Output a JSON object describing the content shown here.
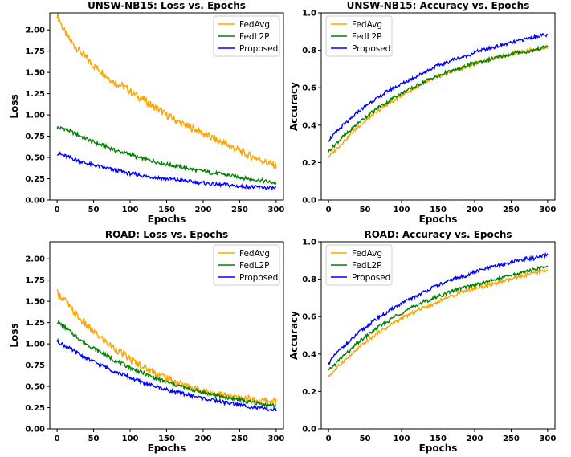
{
  "colors": {
    "FedAvg": "#FFA500",
    "FedL2P": "#008000",
    "Proposed": "#0000FF"
  },
  "chart_data": [
    {
      "type": "line",
      "title": "UNSW-NB15: Loss vs. Epochs",
      "xlabel": "Epochs",
      "ylabel": "Loss",
      "xlim": [
        -10,
        310
      ],
      "ylim": [
        0,
        2.2
      ],
      "xticks": [
        "0",
        "50",
        "100",
        "150",
        "200",
        "250",
        "300"
      ],
      "yticks": [
        "0.00",
        "0.25",
        "0.50",
        "0.75",
        "1.00",
        "1.25",
        "1.50",
        "1.75",
        "2.00"
      ],
      "legend": "top-right",
      "series": [
        {
          "name": "FedAvg",
          "x": [
            0,
            10,
            20,
            30,
            40,
            50,
            60,
            70,
            80,
            90,
            100,
            110,
            120,
            130,
            140,
            150,
            160,
            170,
            180,
            190,
            200,
            210,
            220,
            230,
            240,
            250,
            260,
            270,
            280,
            290,
            300
          ],
          "values": [
            2.18,
            1.98,
            1.85,
            1.76,
            1.67,
            1.58,
            1.52,
            1.44,
            1.38,
            1.34,
            1.28,
            1.22,
            1.17,
            1.11,
            1.06,
            1.0,
            0.95,
            0.9,
            0.86,
            0.83,
            0.78,
            0.74,
            0.7,
            0.66,
            0.62,
            0.58,
            0.53,
            0.5,
            0.47,
            0.43,
            0.4
          ]
        },
        {
          "name": "FedL2P",
          "x": [
            0,
            10,
            20,
            30,
            40,
            50,
            60,
            70,
            80,
            90,
            100,
            110,
            120,
            130,
            140,
            150,
            160,
            170,
            180,
            190,
            200,
            210,
            220,
            230,
            240,
            250,
            260,
            270,
            280,
            290,
            300
          ],
          "values": [
            0.85,
            0.84,
            0.8,
            0.76,
            0.72,
            0.68,
            0.65,
            0.62,
            0.58,
            0.56,
            0.54,
            0.5,
            0.48,
            0.46,
            0.44,
            0.42,
            0.4,
            0.39,
            0.37,
            0.35,
            0.34,
            0.32,
            0.31,
            0.3,
            0.28,
            0.27,
            0.25,
            0.24,
            0.23,
            0.21,
            0.2
          ]
        },
        {
          "name": "Proposed",
          "x": [
            0,
            10,
            20,
            30,
            40,
            50,
            60,
            70,
            80,
            90,
            100,
            110,
            120,
            130,
            140,
            150,
            160,
            170,
            180,
            190,
            200,
            210,
            220,
            230,
            240,
            250,
            260,
            270,
            280,
            290,
            300
          ],
          "values": [
            0.55,
            0.52,
            0.49,
            0.46,
            0.43,
            0.41,
            0.39,
            0.37,
            0.35,
            0.33,
            0.31,
            0.3,
            0.28,
            0.27,
            0.26,
            0.25,
            0.24,
            0.23,
            0.22,
            0.21,
            0.2,
            0.19,
            0.18,
            0.18,
            0.17,
            0.16,
            0.16,
            0.15,
            0.15,
            0.14,
            0.14
          ]
        }
      ]
    },
    {
      "type": "line",
      "title": "UNSW-NB15: Accuracy vs. Epochs",
      "xlabel": "Epochs",
      "ylabel": "Accuracy",
      "xlim": [
        -10,
        310
      ],
      "ylim": [
        0,
        1.0
      ],
      "xticks": [
        "0",
        "50",
        "100",
        "150",
        "200",
        "250",
        "300"
      ],
      "yticks": [
        "0.0",
        "0.2",
        "0.4",
        "0.6",
        "0.8",
        "1.0"
      ],
      "legend": "top-left",
      "series": [
        {
          "name": "FedAvg",
          "x": [
            0,
            10,
            20,
            30,
            40,
            50,
            60,
            70,
            80,
            90,
            100,
            110,
            120,
            130,
            140,
            150,
            160,
            170,
            180,
            190,
            200,
            210,
            220,
            230,
            240,
            250,
            260,
            270,
            280,
            290,
            300
          ],
          "values": [
            0.23,
            0.27,
            0.31,
            0.35,
            0.39,
            0.42,
            0.45,
            0.48,
            0.51,
            0.53,
            0.56,
            0.58,
            0.6,
            0.62,
            0.64,
            0.66,
            0.67,
            0.69,
            0.7,
            0.71,
            0.73,
            0.74,
            0.75,
            0.76,
            0.77,
            0.78,
            0.79,
            0.8,
            0.8,
            0.81,
            0.82
          ]
        },
        {
          "name": "FedL2P",
          "x": [
            0,
            10,
            20,
            30,
            40,
            50,
            60,
            70,
            80,
            90,
            100,
            110,
            120,
            130,
            140,
            150,
            160,
            170,
            180,
            190,
            200,
            210,
            220,
            230,
            240,
            250,
            260,
            270,
            280,
            290,
            300
          ],
          "values": [
            0.26,
            0.3,
            0.34,
            0.37,
            0.41,
            0.44,
            0.47,
            0.5,
            0.52,
            0.55,
            0.57,
            0.59,
            0.61,
            0.63,
            0.65,
            0.66,
            0.68,
            0.69,
            0.7,
            0.72,
            0.73,
            0.74,
            0.75,
            0.76,
            0.77,
            0.78,
            0.79,
            0.79,
            0.8,
            0.81,
            0.82
          ]
        },
        {
          "name": "Proposed",
          "x": [
            0,
            10,
            20,
            30,
            40,
            50,
            60,
            70,
            80,
            90,
            100,
            110,
            120,
            130,
            140,
            150,
            160,
            170,
            180,
            190,
            200,
            210,
            220,
            230,
            240,
            250,
            260,
            270,
            280,
            290,
            300
          ],
          "values": [
            0.32,
            0.36,
            0.4,
            0.43,
            0.47,
            0.5,
            0.53,
            0.55,
            0.58,
            0.6,
            0.62,
            0.64,
            0.66,
            0.68,
            0.7,
            0.72,
            0.73,
            0.75,
            0.76,
            0.77,
            0.79,
            0.8,
            0.81,
            0.82,
            0.83,
            0.84,
            0.85,
            0.86,
            0.87,
            0.88,
            0.88
          ]
        }
      ]
    },
    {
      "type": "line",
      "title": "ROAD: Loss vs. Epochs",
      "xlabel": "Epochs",
      "ylabel": "Loss",
      "xlim": [
        -10,
        310
      ],
      "ylim": [
        0,
        2.2
      ],
      "xticks": [
        "0",
        "50",
        "100",
        "150",
        "200",
        "250",
        "300"
      ],
      "yticks": [
        "0.00",
        "0.25",
        "0.50",
        "0.75",
        "1.00",
        "1.25",
        "1.50",
        "1.75",
        "2.00"
      ],
      "legend": "top-right",
      "series": [
        {
          "name": "FedAvg",
          "x": [
            0,
            10,
            20,
            30,
            40,
            50,
            60,
            70,
            80,
            90,
            100,
            110,
            120,
            130,
            140,
            150,
            160,
            170,
            180,
            190,
            200,
            210,
            220,
            230,
            240,
            250,
            260,
            270,
            280,
            290,
            300
          ],
          "values": [
            1.6,
            1.52,
            1.4,
            1.3,
            1.22,
            1.14,
            1.07,
            1.0,
            0.94,
            0.88,
            0.82,
            0.77,
            0.72,
            0.68,
            0.64,
            0.6,
            0.56,
            0.53,
            0.5,
            0.47,
            0.45,
            0.43,
            0.41,
            0.39,
            0.37,
            0.36,
            0.35,
            0.34,
            0.33,
            0.33,
            0.32
          ]
        },
        {
          "name": "FedL2P",
          "x": [
            0,
            10,
            20,
            30,
            40,
            50,
            60,
            70,
            80,
            90,
            100,
            110,
            120,
            130,
            140,
            150,
            160,
            170,
            180,
            190,
            200,
            210,
            220,
            230,
            240,
            250,
            260,
            270,
            280,
            290,
            300
          ],
          "values": [
            1.26,
            1.2,
            1.13,
            1.06,
            1.0,
            0.95,
            0.9,
            0.85,
            0.8,
            0.76,
            0.72,
            0.68,
            0.65,
            0.61,
            0.58,
            0.55,
            0.52,
            0.5,
            0.47,
            0.45,
            0.43,
            0.41,
            0.39,
            0.37,
            0.36,
            0.34,
            0.32,
            0.31,
            0.29,
            0.28,
            0.27
          ]
        },
        {
          "name": "Proposed",
          "x": [
            0,
            10,
            20,
            30,
            40,
            50,
            60,
            70,
            80,
            90,
            100,
            110,
            120,
            130,
            140,
            150,
            160,
            170,
            180,
            190,
            200,
            210,
            220,
            230,
            240,
            250,
            260,
            270,
            280,
            290,
            300
          ],
          "values": [
            1.03,
            0.98,
            0.93,
            0.88,
            0.83,
            0.79,
            0.75,
            0.71,
            0.67,
            0.64,
            0.6,
            0.57,
            0.54,
            0.51,
            0.49,
            0.46,
            0.44,
            0.42,
            0.4,
            0.38,
            0.36,
            0.34,
            0.33,
            0.31,
            0.3,
            0.28,
            0.27,
            0.25,
            0.24,
            0.23,
            0.22
          ]
        }
      ]
    },
    {
      "type": "line",
      "title": "ROAD: Accuracy vs. Epochs",
      "xlabel": "Epochs",
      "ylabel": "Accuracy",
      "xlim": [
        -10,
        310
      ],
      "ylim": [
        0,
        1.0
      ],
      "xticks": [
        "0",
        "50",
        "100",
        "150",
        "200",
        "250",
        "300"
      ],
      "yticks": [
        "0.0",
        "0.2",
        "0.4",
        "0.6",
        "0.8",
        "1.0"
      ],
      "legend": "top-left",
      "series": [
        {
          "name": "FedAvg",
          "x": [
            0,
            10,
            20,
            30,
            40,
            50,
            60,
            70,
            80,
            90,
            100,
            110,
            120,
            130,
            140,
            150,
            160,
            170,
            180,
            190,
            200,
            210,
            220,
            230,
            240,
            250,
            260,
            270,
            280,
            290,
            300
          ],
          "values": [
            0.28,
            0.32,
            0.36,
            0.39,
            0.43,
            0.46,
            0.49,
            0.52,
            0.54,
            0.57,
            0.59,
            0.61,
            0.63,
            0.65,
            0.66,
            0.68,
            0.7,
            0.71,
            0.73,
            0.74,
            0.75,
            0.76,
            0.77,
            0.78,
            0.79,
            0.8,
            0.81,
            0.82,
            0.83,
            0.84,
            0.85
          ]
        },
        {
          "name": "FedL2P",
          "x": [
            0,
            10,
            20,
            30,
            40,
            50,
            60,
            70,
            80,
            90,
            100,
            110,
            120,
            130,
            140,
            150,
            160,
            170,
            180,
            190,
            200,
            210,
            220,
            230,
            240,
            250,
            260,
            270,
            280,
            290,
            300
          ],
          "values": [
            0.31,
            0.35,
            0.39,
            0.42,
            0.46,
            0.49,
            0.52,
            0.55,
            0.57,
            0.6,
            0.62,
            0.64,
            0.66,
            0.68,
            0.69,
            0.71,
            0.72,
            0.74,
            0.75,
            0.76,
            0.77,
            0.78,
            0.79,
            0.8,
            0.81,
            0.82,
            0.83,
            0.84,
            0.85,
            0.86,
            0.87
          ]
        },
        {
          "name": "Proposed",
          "x": [
            0,
            10,
            20,
            30,
            40,
            50,
            60,
            70,
            80,
            90,
            100,
            110,
            120,
            130,
            140,
            150,
            160,
            170,
            180,
            190,
            200,
            210,
            220,
            230,
            240,
            250,
            260,
            270,
            280,
            290,
            300
          ],
          "values": [
            0.35,
            0.4,
            0.44,
            0.47,
            0.51,
            0.54,
            0.57,
            0.6,
            0.62,
            0.65,
            0.67,
            0.69,
            0.71,
            0.73,
            0.75,
            0.77,
            0.78,
            0.8,
            0.81,
            0.82,
            0.84,
            0.85,
            0.86,
            0.87,
            0.88,
            0.89,
            0.9,
            0.91,
            0.91,
            0.92,
            0.93
          ]
        }
      ]
    }
  ]
}
